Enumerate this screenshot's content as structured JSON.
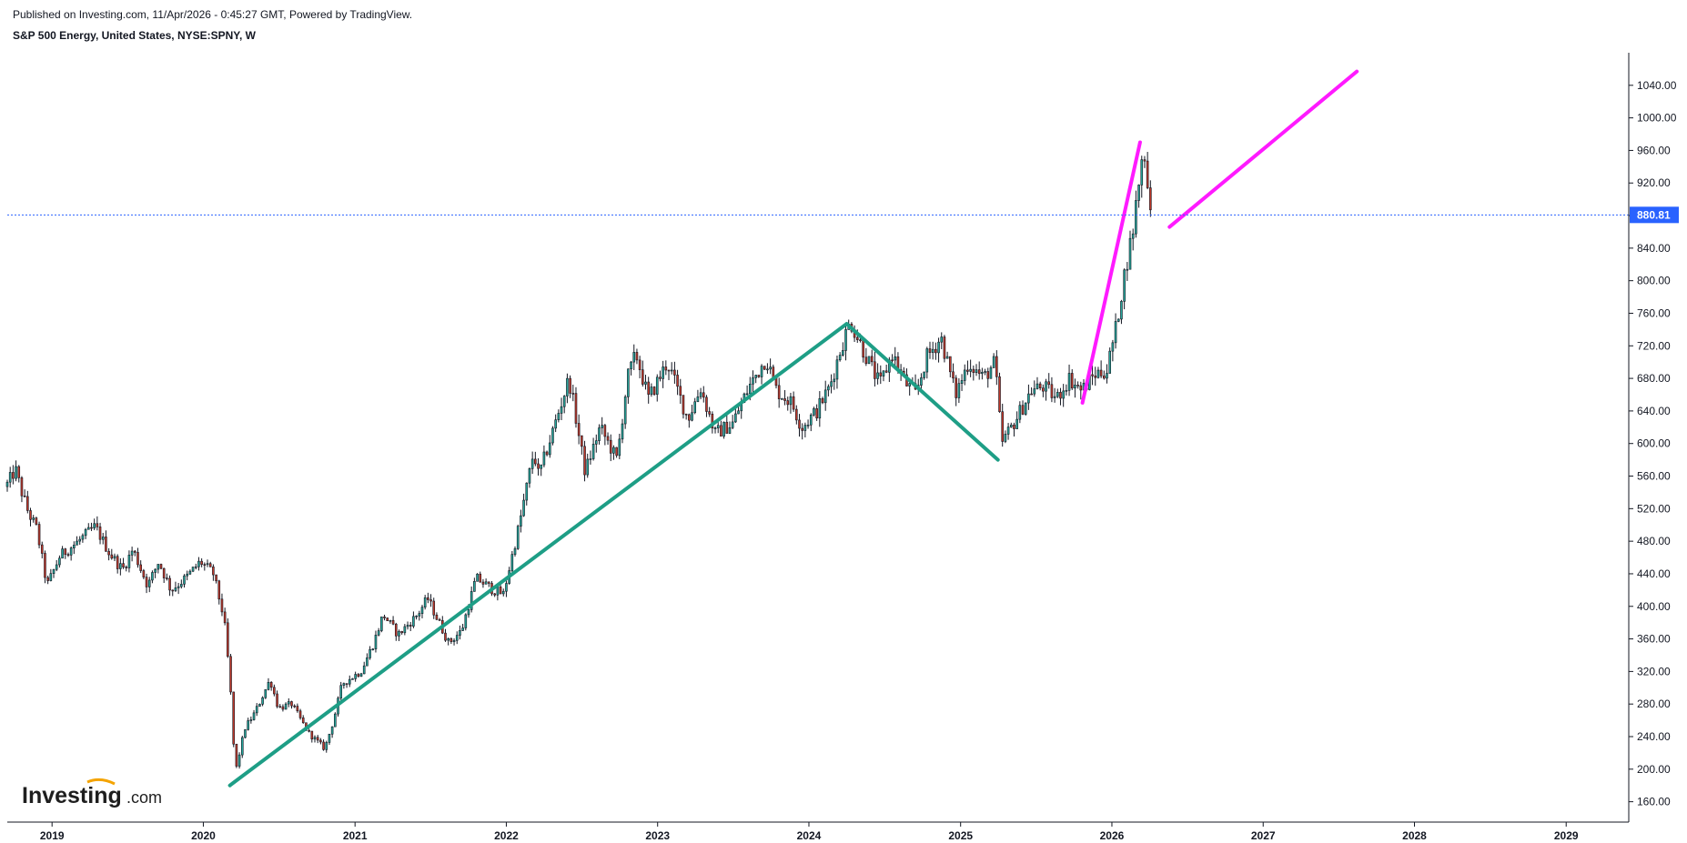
{
  "header": {
    "published": "Published on Investing.com, 11/Apr/2026 - 0:45:27 GMT, Powered by TradingView.",
    "symbol": "S&P 500 Energy, United States, NYSE:SPNY, W"
  },
  "logo": {
    "main": "Investing",
    "suffix": ".com"
  },
  "colors": {
    "up": "#26a69a",
    "down": "#c0392b",
    "wick": "#131722",
    "trendline": "#1e9e86",
    "projection": "#ff1aff",
    "price_line": "#2962ff",
    "axis": "#131722"
  },
  "chart_data": {
    "type": "candlestick",
    "interval": "W",
    "ylim": [
      135,
      1080
    ],
    "xlim": [
      "2018-09-15",
      "2029-06-01"
    ],
    "y_ticks": [
      "160.00",
      "200.00",
      "240.00",
      "280.00",
      "320.00",
      "360.00",
      "400.00",
      "440.00",
      "480.00",
      "520.00",
      "560.00",
      "600.00",
      "640.00",
      "680.00",
      "720.00",
      "760.00",
      "800.00",
      "840.00",
      "880.00",
      "920.00",
      "960.00",
      "1000.00",
      "1040.00"
    ],
    "x_ticks": [
      {
        "label": "2019",
        "date": "2019-01-01"
      },
      {
        "label": "2020",
        "date": "2020-01-01"
      },
      {
        "label": "2021",
        "date": "2021-01-01"
      },
      {
        "label": "2022",
        "date": "2022-01-01"
      },
      {
        "label": "2023",
        "date": "2023-01-01"
      },
      {
        "label": "2024",
        "date": "2024-01-01"
      },
      {
        "label": "2025",
        "date": "2025-01-01"
      },
      {
        "label": "2026",
        "date": "2026-01-01"
      },
      {
        "label": "2027",
        "date": "2027-01-01"
      },
      {
        "label": "2028",
        "date": "2028-01-01"
      },
      {
        "label": "2029",
        "date": "2029-01-01"
      }
    ],
    "last_price": 880.81,
    "last_price_label": "880.81",
    "price_path": [
      [
        "2018-09-15",
        550
      ],
      [
        "2018-10-05",
        568
      ],
      [
        "2018-10-20",
        540
      ],
      [
        "2018-11-05",
        515
      ],
      [
        "2018-11-25",
        495
      ],
      [
        "2018-12-20",
        425
      ],
      [
        "2019-01-20",
        462
      ],
      [
        "2019-03-01",
        478
      ],
      [
        "2019-04-15",
        498
      ],
      [
        "2019-05-20",
        465
      ],
      [
        "2019-06-20",
        445
      ],
      [
        "2019-07-15",
        470
      ],
      [
        "2019-08-20",
        425
      ],
      [
        "2019-09-15",
        455
      ],
      [
        "2019-10-15",
        420
      ],
      [
        "2019-11-20",
        435
      ],
      [
        "2019-12-25",
        455
      ],
      [
        "2020-01-25",
        440
      ],
      [
        "2020-02-20",
        385
      ],
      [
        "2020-03-05",
        310
      ],
      [
        "2020-03-18",
        195
      ],
      [
        "2020-04-10",
        250
      ],
      [
        "2020-05-05",
        270
      ],
      [
        "2020-06-10",
        310
      ],
      [
        "2020-06-30",
        275
      ],
      [
        "2020-08-01",
        280
      ],
      [
        "2020-09-10",
        245
      ],
      [
        "2020-10-20",
        225
      ],
      [
        "2020-11-10",
        260
      ],
      [
        "2020-12-01",
        305
      ],
      [
        "2021-01-15",
        320
      ],
      [
        "2021-02-15",
        355
      ],
      [
        "2021-03-10",
        390
      ],
      [
        "2021-04-15",
        365
      ],
      [
        "2021-06-01",
        390
      ],
      [
        "2021-06-25",
        410
      ],
      [
        "2021-08-15",
        355
      ],
      [
        "2021-09-15",
        370
      ],
      [
        "2021-10-20",
        435
      ],
      [
        "2021-12-01",
        420
      ],
      [
        "2021-12-25",
        415
      ],
      [
        "2022-02-01",
        500
      ],
      [
        "2022-03-08",
        590
      ],
      [
        "2022-03-20",
        560
      ],
      [
        "2022-04-20",
        610
      ],
      [
        "2022-06-01",
        680
      ],
      [
        "2022-06-10",
        655
      ],
      [
        "2022-07-10",
        565
      ],
      [
        "2022-08-15",
        620
      ],
      [
        "2022-09-25",
        580
      ],
      [
        "2022-10-20",
        680
      ],
      [
        "2022-11-10",
        710
      ],
      [
        "2022-12-10",
        655
      ],
      [
        "2023-01-25",
        700
      ],
      [
        "2023-03-15",
        630
      ],
      [
        "2023-04-15",
        668
      ],
      [
        "2023-05-20",
        612
      ],
      [
        "2023-07-01",
        625
      ],
      [
        "2023-08-10",
        670
      ],
      [
        "2023-09-20",
        705
      ],
      [
        "2023-10-15",
        665
      ],
      [
        "2023-11-20",
        650
      ],
      [
        "2023-12-15",
        620
      ],
      [
        "2024-01-20",
        640
      ],
      [
        "2024-02-20",
        670
      ],
      [
        "2024-03-20",
        720
      ],
      [
        "2024-04-10",
        750
      ],
      [
        "2024-05-20",
        705
      ],
      [
        "2024-06-20",
        672
      ],
      [
        "2024-07-20",
        710
      ],
      [
        "2024-08-20",
        675
      ],
      [
        "2024-09-15",
        660
      ],
      [
        "2024-10-10",
        705
      ],
      [
        "2024-11-15",
        730
      ],
      [
        "2024-12-20",
        660
      ],
      [
        "2025-01-20",
        700
      ],
      [
        "2025-02-25",
        680
      ],
      [
        "2025-03-25",
        700
      ],
      [
        "2025-04-10",
        600
      ],
      [
        "2025-05-15",
        630
      ],
      [
        "2025-06-20",
        665
      ],
      [
        "2025-07-20",
        670
      ],
      [
        "2025-08-20",
        655
      ],
      [
        "2025-09-20",
        680
      ],
      [
        "2025-10-20",
        665
      ],
      [
        "2025-11-20",
        685
      ],
      [
        "2025-12-20",
        690
      ],
      [
        "2026-01-10",
        740
      ],
      [
        "2026-02-01",
        810
      ],
      [
        "2026-02-20",
        860
      ],
      [
        "2026-03-10",
        935
      ],
      [
        "2026-03-20",
        962
      ],
      [
        "2026-03-28",
        915
      ],
      [
        "2026-04-10",
        880.81
      ]
    ],
    "trendlines": [
      {
        "color": "#1e9e86",
        "points": [
          [
            "2020-03-05",
            180
          ],
          [
            "2024-04-01",
            747
          ]
        ]
      },
      {
        "color": "#1e9e86",
        "points": [
          [
            "2024-04-01",
            747
          ],
          [
            "2025-04-01",
            580
          ]
        ]
      },
      {
        "color": "#ff1aff",
        "points": [
          [
            "2025-10-22",
            650
          ],
          [
            "2026-03-10",
            970
          ]
        ]
      },
      {
        "color": "#ff1aff",
        "points": [
          [
            "2026-05-20",
            866
          ],
          [
            "2027-08-15",
            1057
          ]
        ]
      }
    ]
  }
}
